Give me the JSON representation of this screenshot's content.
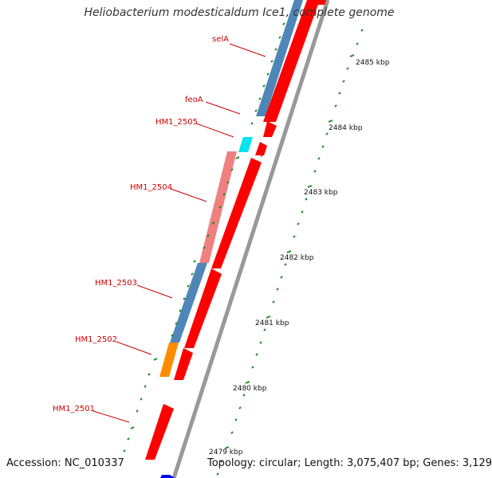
{
  "title": "Heliobacterium modesticaldum Ice1, complete genome",
  "footer": {
    "accession": "Accession: NC_010337",
    "summary": "Topology: circular; Length: 3,075,407 bp; Genes: 3,129"
  },
  "colors": {
    "backbone": "#999999",
    "forward_gene": "#ff0000",
    "reverse_blue": "#4f86b8",
    "reverse_pink": "#f08080",
    "reverse_orange": "#ff8c00",
    "reverse_cyan": "#00e5f0",
    "reverse_dark_blue": "#0000ff",
    "label_text": "#cc0000",
    "tick": "#228b22"
  },
  "scale_labels": [
    "2485 kbp",
    "2484 kbp",
    "2483 kbp",
    "2482 kbp",
    "2481 kbp",
    "2480 kbp",
    "2479 kbp"
  ],
  "gene_labels": [
    "selA",
    "feoA",
    "HM1_2505",
    "HM1_2504",
    "HM1_2503",
    "HM1_2502",
    "HM1_2501"
  ]
}
